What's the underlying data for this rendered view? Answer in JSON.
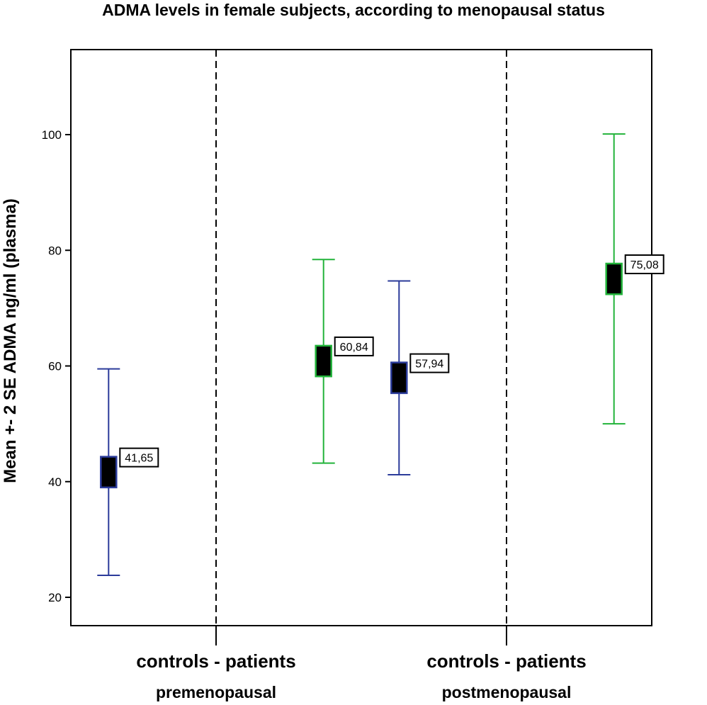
{
  "chart_data": {
    "type": "errorbar",
    "title": "ADMA levels in female subjects, according to menopausal status",
    "ylabel": "Mean +- 2 SE ADMA ng/ml (plasma)",
    "ylim": [
      15,
      114
    ],
    "yticks": [
      20,
      40,
      60,
      80,
      100
    ],
    "groups": [
      {
        "category_label": "controls - patients",
        "group_label": "premenopausal"
      },
      {
        "category_label": "controls - patients",
        "group_label": "postmenopausal"
      }
    ],
    "series": [
      {
        "name": "controls",
        "color": "#2b3b9a",
        "group": 0,
        "mean": 41.65,
        "mean_label": "41,65",
        "lower": 23.8,
        "upper": 59.5,
        "box_low": 39.0,
        "box_high": 44.3
      },
      {
        "name": "patients",
        "color": "#22b33a",
        "group": 0,
        "mean": 60.84,
        "mean_label": "60,84",
        "lower": 43.2,
        "upper": 78.4,
        "box_low": 58.2,
        "box_high": 63.5
      },
      {
        "name": "controls",
        "color": "#2b3b9a",
        "group": 1,
        "mean": 57.94,
        "mean_label": "57,94",
        "lower": 41.2,
        "upper": 74.7,
        "box_low": 55.3,
        "box_high": 60.6
      },
      {
        "name": "patients",
        "color": "#22b33a",
        "group": 1,
        "mean": 75.08,
        "mean_label": "75,08",
        "lower": 50.0,
        "upper": 100.1,
        "box_low": 72.4,
        "box_high": 77.7
      }
    ]
  }
}
